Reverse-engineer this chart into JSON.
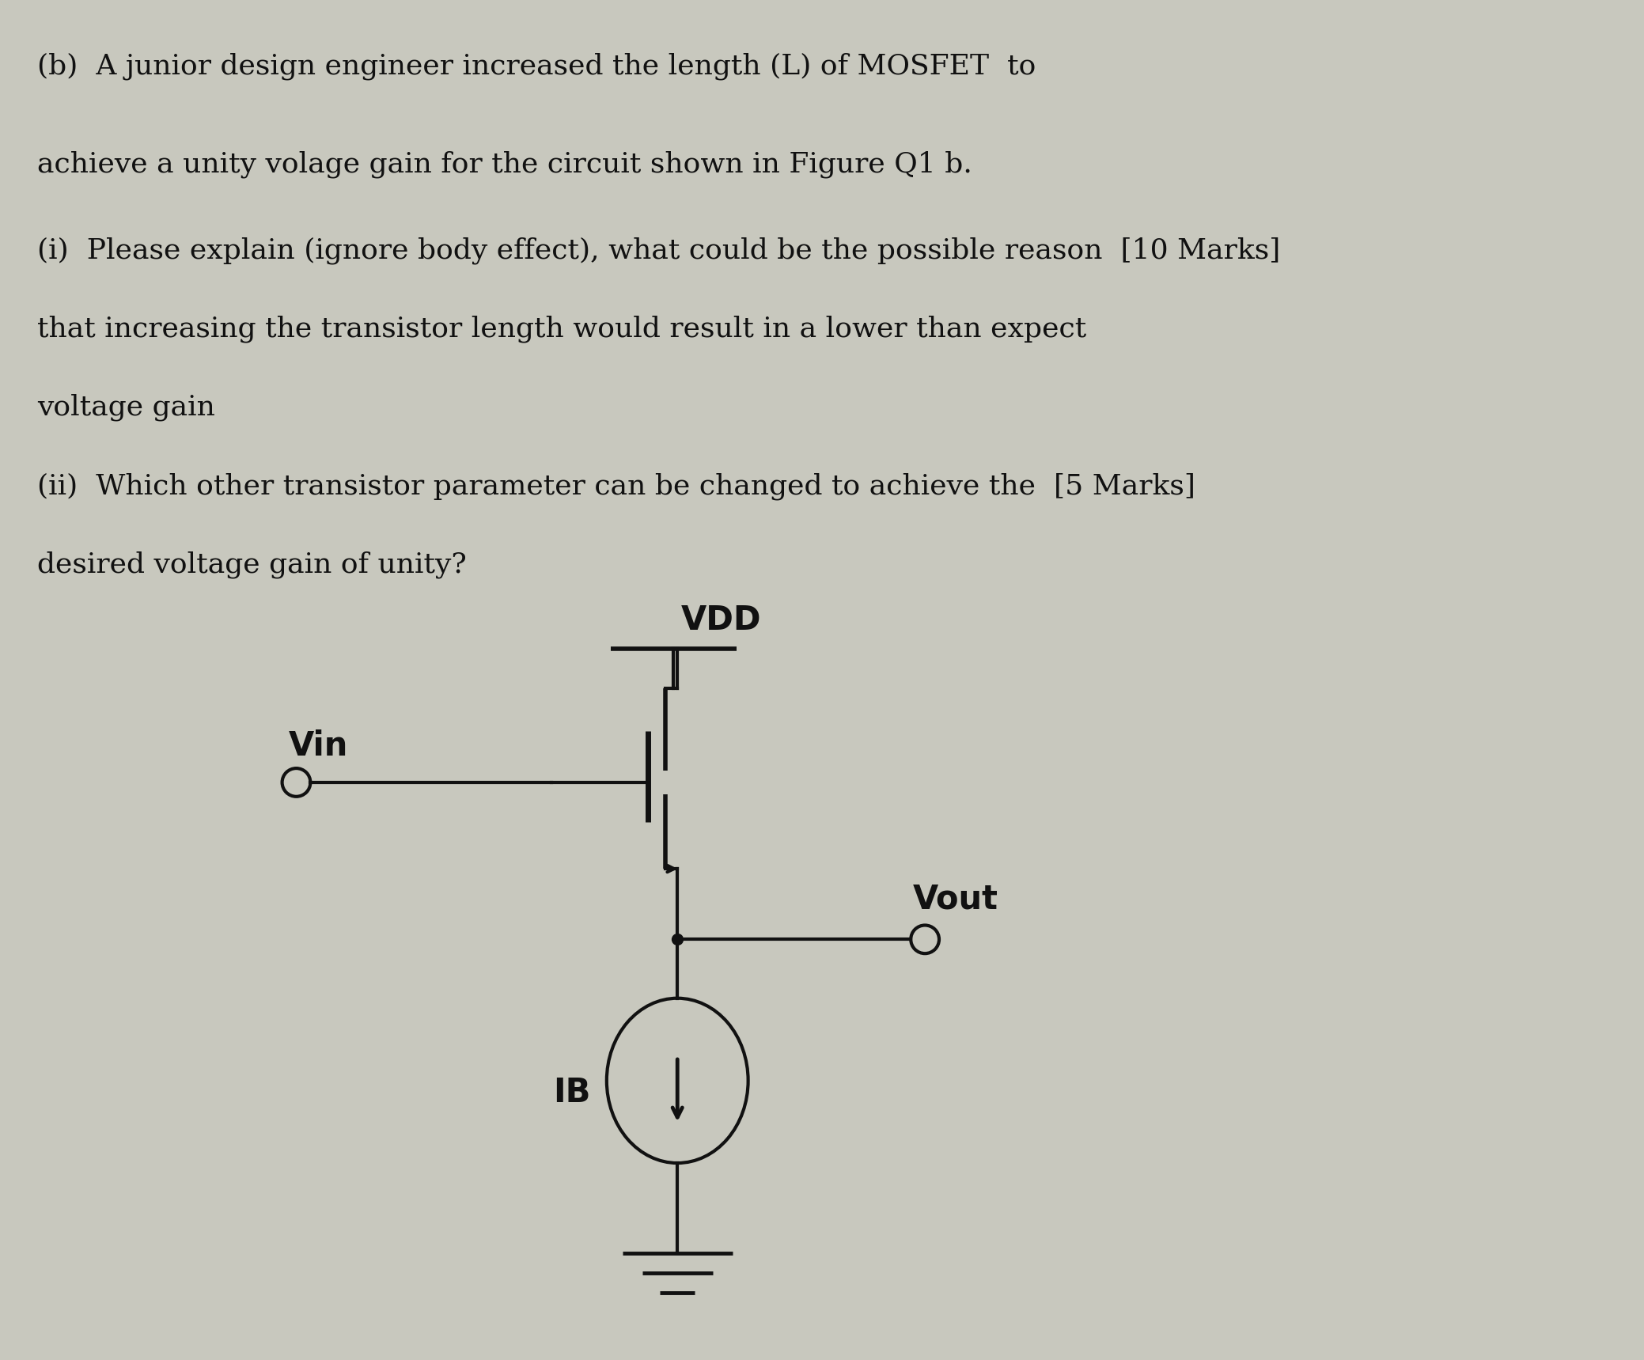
{
  "background_color": "#c8c8be",
  "text_color": "#111111",
  "line1": "(b)  A junior design engineer increased the length (L) of MOSFET  to",
  "line2": "achieve a unity volage gain for the circuit shown in Figure Q1 b.",
  "line3": "(i)  Please explain (ignore body effect), what could be the possible reason  [10 Marks]",
  "line4": "that increasing the transistor length would result in a lower than expect",
  "line5": "voltage gain",
  "line6": "(ii)  Which other transistor parameter can be changed to achieve the  [5 Marks]",
  "line7": "desired voltage gain of unity?",
  "font_size_text": 26,
  "vdd_label": "VDD",
  "vin_label": "Vin",
  "vout_label": "Vout",
  "ib_label": "IB"
}
